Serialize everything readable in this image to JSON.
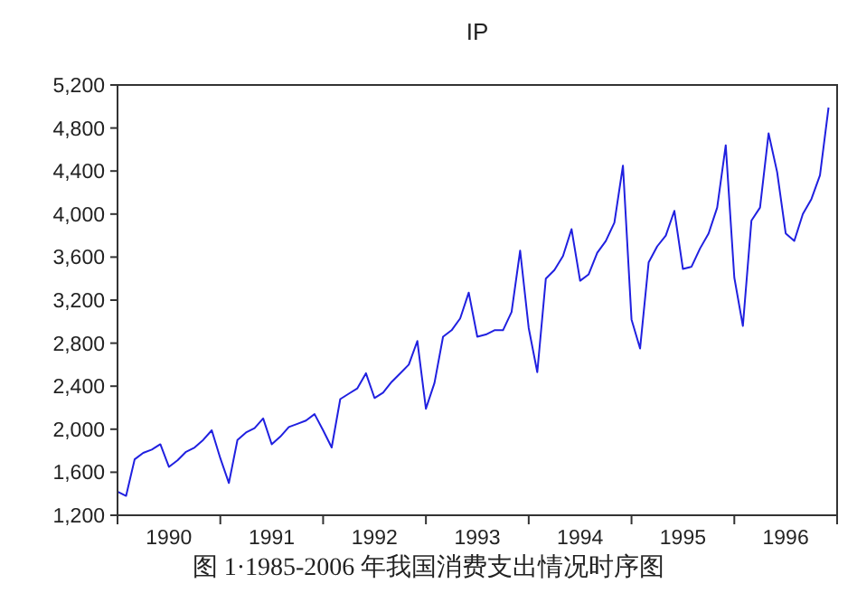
{
  "chart_data": {
    "type": "line",
    "title": "IP",
    "annotations": [
      "图 1·1985-2006 年我国消费支出情况时序图"
    ],
    "x": [
      "1990-01",
      "1990-02",
      "1990-03",
      "1990-04",
      "1990-05",
      "1990-06",
      "1990-07",
      "1990-08",
      "1990-09",
      "1990-10",
      "1990-11",
      "1990-12",
      "1991-01",
      "1991-02",
      "1991-03",
      "1991-04",
      "1991-05",
      "1991-06",
      "1991-07",
      "1991-08",
      "1991-09",
      "1991-10",
      "1991-11",
      "1991-12",
      "1992-01",
      "1992-02",
      "1992-03",
      "1992-04",
      "1992-05",
      "1992-06",
      "1992-07",
      "1992-08",
      "1992-09",
      "1992-10",
      "1992-11",
      "1992-12",
      "1993-01",
      "1993-02",
      "1993-03",
      "1993-04",
      "1993-05",
      "1993-06",
      "1993-07",
      "1993-08",
      "1993-09",
      "1993-10",
      "1993-11",
      "1993-12",
      "1994-01",
      "1994-02",
      "1994-03",
      "1994-04",
      "1994-05",
      "1994-06",
      "1994-07",
      "1994-08",
      "1994-09",
      "1994-10",
      "1994-11",
      "1994-12",
      "1995-01",
      "1995-02",
      "1995-03",
      "1995-04",
      "1995-05",
      "1995-06",
      "1995-07",
      "1995-08",
      "1995-09",
      "1995-10",
      "1995-11",
      "1995-12",
      "1996-01",
      "1996-02",
      "1996-03",
      "1996-04",
      "1996-05",
      "1996-06",
      "1996-07",
      "1996-08",
      "1996-09",
      "1996-10",
      "1996-11",
      "1996-12"
    ],
    "series": [
      {
        "color": "#2020e0",
        "values": [
          1420,
          1380,
          1720,
          1780,
          1810,
          1860,
          1650,
          1710,
          1790,
          1830,
          1900,
          1990,
          1730,
          1500,
          1900,
          1970,
          2010,
          2100,
          1860,
          1930,
          2020,
          2050,
          2080,
          2140,
          1990,
          1830,
          2280,
          2330,
          2380,
          2520,
          2290,
          2340,
          2440,
          2520,
          2600,
          2820,
          2190,
          2430,
          2860,
          2920,
          3030,
          3270,
          2860,
          2880,
          2920,
          2920,
          3090,
          3660,
          2940,
          2530,
          3400,
          3480,
          3610,
          3860,
          3380,
          3440,
          3640,
          3750,
          3920,
          4450,
          3020,
          2750,
          3550,
          3700,
          3800,
          4030,
          3490,
          3510,
          3680,
          3820,
          4060,
          4640,
          3410,
          2960,
          3940,
          4060,
          4750,
          4390,
          3820,
          3750,
          4000,
          4140,
          4360,
          4990
        ]
      }
    ],
    "xlim": [
      "1990-01",
      "1997-01"
    ],
    "xticks": [
      {
        "value": "1990-01",
        "label": null
      },
      {
        "value": "1990-07",
        "label": "1990"
      },
      {
        "value": "1991-01",
        "label": null
      },
      {
        "value": "1991-07",
        "label": "1991"
      },
      {
        "value": "1992-01",
        "label": null
      },
      {
        "value": "1992-07",
        "label": "1992"
      },
      {
        "value": "1993-01",
        "label": null
      },
      {
        "value": "1993-07",
        "label": "1993"
      },
      {
        "value": "1994-01",
        "label": null
      },
      {
        "value": "1994-07",
        "label": "1994"
      },
      {
        "value": "1995-01",
        "label": null
      },
      {
        "value": "1995-07",
        "label": "1995"
      },
      {
        "value": "1996-01",
        "label": null
      },
      {
        "value": "1996-07",
        "label": "1996"
      },
      {
        "value": "1997-01",
        "label": null
      }
    ],
    "ylim": [
      1200,
      5200
    ],
    "yticks": [
      {
        "value": 1200,
        "label": "1,200"
      },
      {
        "value": 1600,
        "label": "1,600"
      },
      {
        "value": 2000,
        "label": "2,000"
      },
      {
        "value": 2400,
        "label": "2,400"
      },
      {
        "value": 2800,
        "label": "2,800"
      },
      {
        "value": 3200,
        "label": "3,200"
      },
      {
        "value": 3600,
        "label": "3,600"
      },
      {
        "value": 4000,
        "label": "4,000"
      },
      {
        "value": 4400,
        "label": "4,400"
      },
      {
        "value": 4800,
        "label": "4,800"
      },
      {
        "value": 5200,
        "label": "5,200"
      }
    ],
    "grid": false,
    "marker": "none",
    "line_style": "solid"
  }
}
